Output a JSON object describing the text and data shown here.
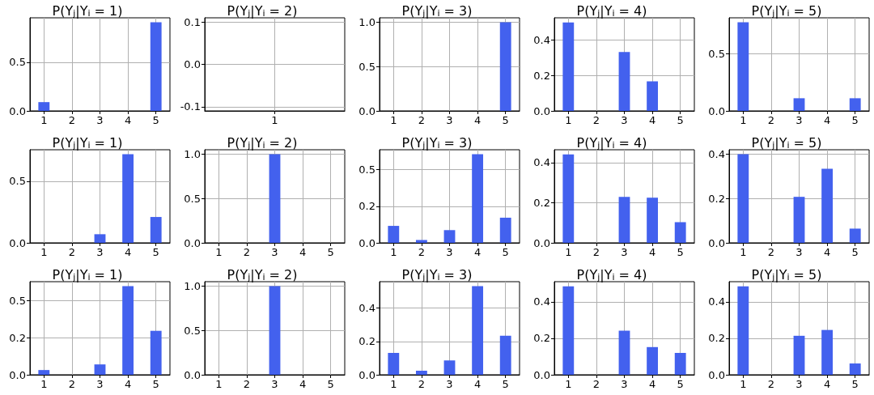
{
  "chart_data": [
    {
      "type": "bar",
      "title": "P(Y$_{j}$|Y$_{i}$ = 1)",
      "categories": [
        "1",
        "2",
        "3",
        "4",
        "5"
      ],
      "values": [
        0.09,
        0,
        0,
        0,
        0.91
      ],
      "color": "#4361ee",
      "ylim": [
        0,
        0.955
      ],
      "yticks": [
        {
          "value": 0,
          "label": "0.0"
        },
        0.5
      ],
      "grid": true
    },
    {
      "type": "bar",
      "title": "P(Y$_{j}$|Y$_{i}$ = 2)",
      "categories": [
        "1"
      ],
      "values": [
        null
      ],
      "color": "#4361ee",
      "ylim": [
        -0.11,
        0.11
      ],
      "yticks": [
        -0.1,
        {
          "value": 0,
          "label": "0.0"
        },
        0.1
      ],
      "grid": true
    },
    {
      "type": "bar",
      "title": "P(Y$_{j}$|Y$_{i}$ = 3)",
      "categories": [
        "1",
        "2",
        "3",
        "4",
        "5"
      ],
      "values": [
        0,
        0,
        0,
        0,
        1
      ],
      "color": "#4361ee",
      "ylim": [
        0,
        1.05
      ],
      "yticks": [
        {
          "value": 0,
          "label": "0.0"
        },
        0.5,
        {
          "value": 1,
          "label": "1.0"
        }
      ],
      "grid": true
    },
    {
      "type": "bar",
      "title": "P(Y$_{j}$|Y$_{i}$ = 4)",
      "categories": [
        "1",
        "2",
        "3",
        "4",
        "5"
      ],
      "values": [
        0.5,
        0,
        0.333,
        0.167,
        0
      ],
      "color": "#4361ee",
      "ylim": [
        0,
        0.526
      ],
      "yticks": [
        {
          "value": 0,
          "label": "0.0"
        },
        0.2,
        0.4
      ],
      "grid": true
    },
    {
      "type": "bar",
      "title": "P(Y$_{j}$|Y$_{i}$ = 5)",
      "categories": [
        "1",
        "2",
        "3",
        "4",
        "5"
      ],
      "values": [
        0.778,
        0,
        0.111,
        0,
        0.111
      ],
      "color": "#4361ee",
      "ylim": [
        0,
        0.817
      ],
      "yticks": [
        {
          "value": 0,
          "label": "0.0"
        },
        0.5
      ],
      "grid": true
    },
    {
      "type": "bar",
      "title": "P(Y$_{j}$|Y$_{i}$ = 1)",
      "categories": [
        "1",
        "2",
        "3",
        "4",
        "5"
      ],
      "values": [
        0,
        0,
        0.07,
        0.72,
        0.21
      ],
      "color": "#4361ee",
      "ylim": [
        0,
        0.756
      ],
      "yticks": [
        {
          "value": 0,
          "label": "0.0"
        },
        0.5
      ],
      "grid": true
    },
    {
      "type": "bar",
      "title": "P(Y$_{j}$|Y$_{i}$ = 2)",
      "categories": [
        "1",
        "2",
        "3",
        "4",
        "5"
      ],
      "values": [
        0,
        0,
        1,
        0,
        0
      ],
      "color": "#4361ee",
      "ylim": [
        0,
        1.05
      ],
      "yticks": [
        {
          "value": 0,
          "label": "0.0"
        },
        0.5,
        {
          "value": 1,
          "label": "1.0"
        }
      ],
      "grid": true
    },
    {
      "type": "bar",
      "title": "P(Y$_{j}$|Y$_{i}$ = 3)",
      "categories": [
        "1",
        "2",
        "3",
        "4",
        "5"
      ],
      "values": [
        0.116,
        0.019,
        0.087,
        0.606,
        0.172
      ],
      "color": "#4361ee",
      "ylim": [
        0,
        0.637
      ],
      "yticks": [
        {
          "value": 0,
          "label": "0.0"
        },
        {
          "value": 0.25,
          "label": "0.2"
        },
        0.5
      ],
      "grid": true
    },
    {
      "type": "bar",
      "title": "P(Y$_{j}$|Y$_{i}$ = 4)",
      "categories": [
        "1",
        "2",
        "3",
        "4",
        "5"
      ],
      "values": [
        0.441,
        0,
        0.229,
        0.225,
        0.103
      ],
      "color": "#4361ee",
      "ylim": [
        0,
        0.464
      ],
      "yticks": [
        {
          "value": 0,
          "label": "0.0"
        },
        0.2,
        0.4
      ],
      "grid": true
    },
    {
      "type": "bar",
      "title": "P(Y$_{j}$|Y$_{i}$ = 5)",
      "categories": [
        "1",
        "2",
        "3",
        "4",
        "5"
      ],
      "values": [
        0.399,
        0,
        0.207,
        0.333,
        0.064
      ],
      "color": "#4361ee",
      "ylim": [
        0,
        0.419
      ],
      "yticks": [
        {
          "value": 0,
          "label": "0.0"
        },
        0.2,
        0.4
      ],
      "grid": true
    },
    {
      "type": "bar",
      "title": "P(Y$_{j}$|Y$_{i}$ = 1)",
      "categories": [
        "1",
        "2",
        "3",
        "4",
        "5"
      ],
      "values": [
        0.032,
        0,
        0.07,
        0.599,
        0.297
      ],
      "color": "#4361ee",
      "ylim": [
        0,
        0.629
      ],
      "yticks": [
        {
          "value": 0,
          "label": "0.0"
        },
        {
          "value": 0.25,
          "label": "0.2"
        },
        0.5
      ],
      "grid": true
    },
    {
      "type": "bar",
      "title": "P(Y$_{j}$|Y$_{i}$ = 2)",
      "categories": [
        "1",
        "2",
        "3",
        "4",
        "5"
      ],
      "values": [
        0,
        0,
        1,
        0,
        0
      ],
      "color": "#4361ee",
      "ylim": [
        0,
        1.05
      ],
      "yticks": [
        {
          "value": 0,
          "label": "0.0"
        },
        0.5,
        {
          "value": 1,
          "label": "1.0"
        }
      ],
      "grid": true
    },
    {
      "type": "bar",
      "title": "P(Y$_{j}$|Y$_{i}$ = 3)",
      "categories": [
        "1",
        "2",
        "3",
        "4",
        "5"
      ],
      "values": [
        0.131,
        0.024,
        0.086,
        0.531,
        0.234
      ],
      "color": "#4361ee",
      "ylim": [
        0,
        0.558
      ],
      "yticks": [
        {
          "value": 0,
          "label": "0.0"
        },
        0.2,
        0.4
      ],
      "grid": true
    },
    {
      "type": "bar",
      "title": "P(Y$_{j}$|Y$_{i}$ = 4)",
      "categories": [
        "1",
        "2",
        "3",
        "4",
        "5"
      ],
      "values": [
        0.486,
        0,
        0.242,
        0.152,
        0.12
      ],
      "color": "#4361ee",
      "ylim": [
        0,
        0.511
      ],
      "yticks": [
        {
          "value": 0,
          "label": "0.0"
        },
        0.2,
        0.4
      ],
      "grid": true
    },
    {
      "type": "bar",
      "title": "P(Y$_{j}$|Y$_{i}$ = 5)",
      "categories": [
        "1",
        "2",
        "3",
        "4",
        "5"
      ],
      "values": [
        0.486,
        0,
        0.214,
        0.246,
        0.062
      ],
      "color": "#4361ee",
      "ylim": [
        0,
        0.511
      ],
      "yticks": [
        {
          "value": 0,
          "label": "0.0"
        },
        0.2,
        0.4
      ],
      "grid": true
    }
  ]
}
